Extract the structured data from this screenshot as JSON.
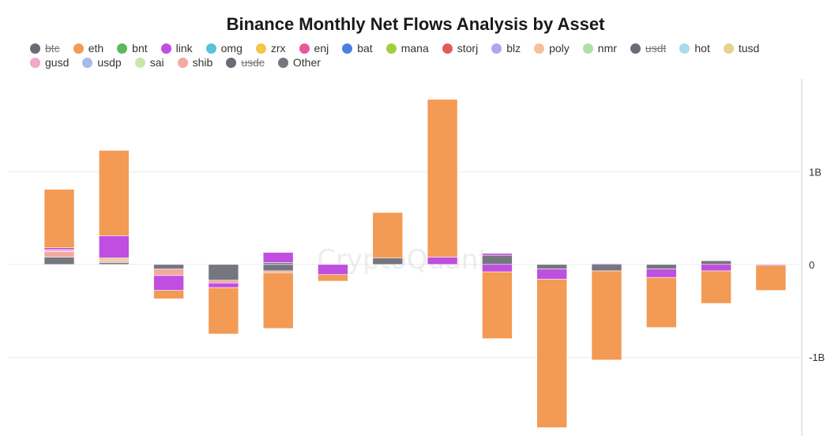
{
  "chart_data": {
    "type": "bar",
    "stacked": true,
    "title": "Binance Monthly Net Flows Analysis by Asset",
    "watermark": "CryptoQuant",
    "y_axis": {
      "position": "right",
      "range": [
        -1.85,
        2.0
      ],
      "unit": "B",
      "ticks": [
        {
          "value": 1,
          "label": "1B"
        },
        {
          "value": 0,
          "label": "0"
        },
        {
          "value": -1,
          "label": "-1B"
        }
      ]
    },
    "grid": true,
    "legend": {
      "placement": "top",
      "entries": [
        {
          "name": "btc",
          "color": "#6b6b78",
          "hidden": true
        },
        {
          "name": "eth",
          "color": "#f39a55",
          "hidden": false
        },
        {
          "name": "bnt",
          "color": "#5cb85c",
          "hidden": false
        },
        {
          "name": "link",
          "color": "#c04ee0",
          "hidden": false
        },
        {
          "name": "omg",
          "color": "#5bc0de",
          "hidden": false
        },
        {
          "name": "zrx",
          "color": "#f0c74a",
          "hidden": false
        },
        {
          "name": "enj",
          "color": "#e55a9a",
          "hidden": false
        },
        {
          "name": "bat",
          "color": "#4a7fe0",
          "hidden": false
        },
        {
          "name": "mana",
          "color": "#a3cf3f",
          "hidden": false
        },
        {
          "name": "storj",
          "color": "#e05c5c",
          "hidden": false
        },
        {
          "name": "blz",
          "color": "#b4a4f0",
          "hidden": false
        },
        {
          "name": "poly",
          "color": "#f5c19a",
          "hidden": false
        },
        {
          "name": "nmr",
          "color": "#aee0a5",
          "hidden": false
        },
        {
          "name": "usdt",
          "color": "#6b6b78",
          "hidden": true
        },
        {
          "name": "hot",
          "color": "#a8dcec",
          "hidden": false
        },
        {
          "name": "tusd",
          "color": "#e3d48e",
          "hidden": false
        },
        {
          "name": "gusd",
          "color": "#f4a6cd",
          "hidden": false
        },
        {
          "name": "usdp",
          "color": "#a9b9ee",
          "hidden": false
        },
        {
          "name": "sai",
          "color": "#c9e8a8",
          "hidden": false
        },
        {
          "name": "shib",
          "color": "#f2aaa0",
          "hidden": false
        },
        {
          "name": "usdc",
          "color": "#6b6b78",
          "hidden": true
        },
        {
          "name": "Other",
          "color": "#767680",
          "hidden": false
        }
      ]
    },
    "bars": [
      {
        "segments": [
          {
            "series": "Other",
            "value": 0.08
          },
          {
            "series": "shib",
            "value": 0.06
          },
          {
            "series": "gusd",
            "value": 0.02
          },
          {
            "series": "link",
            "value": 0.02
          },
          {
            "series": "eth",
            "value": 0.63
          }
        ]
      },
      {
        "segments": [
          {
            "series": "Other",
            "value": 0.02
          },
          {
            "series": "shib",
            "value": 0.02
          },
          {
            "series": "tusd",
            "value": 0.03
          },
          {
            "series": "link",
            "value": 0.24
          },
          {
            "series": "eth",
            "value": 0.92
          }
        ]
      },
      {
        "segments": [
          {
            "series": "Other",
            "value": -0.05
          },
          {
            "series": "shib",
            "value": -0.07
          },
          {
            "series": "link",
            "value": -0.16
          },
          {
            "series": "eth",
            "value": -0.09
          }
        ]
      },
      {
        "segments": [
          {
            "series": "Other",
            "value": -0.17
          },
          {
            "series": "shib",
            "value": -0.03
          },
          {
            "series": "link",
            "value": -0.05
          },
          {
            "series": "eth",
            "value": -0.5
          }
        ]
      },
      {
        "segments": [
          {
            "series": "Other",
            "value": -0.07
          },
          {
            "series": "shib",
            "value": -0.02
          },
          {
            "series": "eth",
            "value": -0.6
          },
          {
            "series": "Other",
            "value": 0.02
          },
          {
            "series": "link",
            "value": 0.11
          }
        ]
      },
      {
        "segments": [
          {
            "series": "link",
            "value": -0.11
          },
          {
            "series": "eth",
            "value": -0.07
          }
        ]
      },
      {
        "segments": [
          {
            "series": "Other",
            "value": 0.07
          },
          {
            "series": "eth",
            "value": 0.49
          }
        ]
      },
      {
        "segments": [
          {
            "series": "link",
            "value": 0.08
          },
          {
            "series": "eth",
            "value": 1.7
          }
        ]
      },
      {
        "segments": [
          {
            "series": "Other",
            "value": 0.1
          },
          {
            "series": "link",
            "value": 0.02
          },
          {
            "series": "link",
            "value": -0.08
          },
          {
            "series": "eth",
            "value": -0.72
          }
        ]
      },
      {
        "segments": [
          {
            "series": "Other",
            "value": -0.05
          },
          {
            "series": "link",
            "value": -0.11
          },
          {
            "series": "eth",
            "value": -1.6
          }
        ]
      },
      {
        "segments": [
          {
            "series": "link",
            "value": 0.01
          },
          {
            "series": "Other",
            "value": -0.07
          },
          {
            "series": "eth",
            "value": -0.96
          }
        ]
      },
      {
        "segments": [
          {
            "series": "Other",
            "value": -0.05
          },
          {
            "series": "link",
            "value": -0.09
          },
          {
            "series": "eth",
            "value": -0.54
          }
        ]
      },
      {
        "segments": [
          {
            "series": "Other",
            "value": 0.04
          },
          {
            "series": "link",
            "value": -0.07
          },
          {
            "series": "eth",
            "value": -0.35
          }
        ]
      },
      {
        "segments": [
          {
            "series": "link",
            "value": -0.01
          },
          {
            "series": "eth",
            "value": -0.27
          }
        ]
      }
    ]
  }
}
